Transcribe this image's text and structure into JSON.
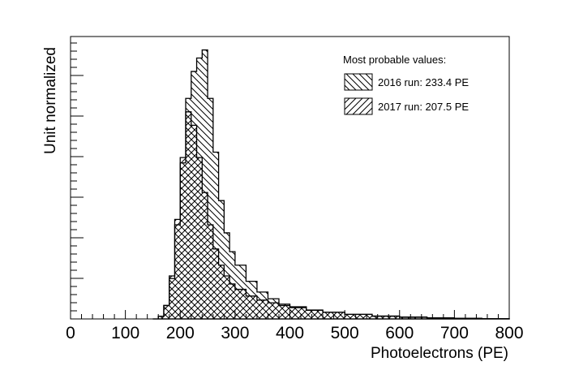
{
  "chart_data": {
    "type": "area",
    "xlabel": "Photoelectrons (PE)",
    "ylabel": "Unit normalized",
    "xlim": [
      0,
      800
    ],
    "ylim": [
      0,
      1.05
    ],
    "x_ticks": [
      0,
      100,
      200,
      300,
      400,
      500,
      600,
      700,
      800
    ],
    "grid": false,
    "legend": {
      "placement": "top-right",
      "title": "Most probable values:",
      "entries": [
        "2016 run: 233.4 PE",
        "2017 run: 207.5 PE"
      ]
    },
    "series": [
      {
        "name": "2016 run: 233.4 PE",
        "hatch": "diagonal-down",
        "x": [
          150,
          160,
          170,
          180,
          190,
          200,
          210,
          220,
          230,
          240,
          250,
          260,
          270,
          280,
          290,
          300,
          320,
          340,
          360,
          380,
          400,
          430,
          460,
          500,
          550,
          600,
          650,
          700,
          750,
          800
        ],
        "values": [
          0.0,
          0.01,
          0.05,
          0.15,
          0.35,
          0.58,
          0.82,
          0.92,
          0.97,
          1.0,
          0.82,
          0.62,
          0.44,
          0.32,
          0.25,
          0.2,
          0.14,
          0.1,
          0.075,
          0.055,
          0.045,
          0.033,
          0.025,
          0.017,
          0.01,
          0.006,
          0.004,
          0.002,
          0.001,
          0.0
        ]
      },
      {
        "name": "2017 run: 207.5 PE",
        "hatch": "diagonal-up",
        "x": [
          150,
          160,
          170,
          180,
          190,
          200,
          210,
          220,
          230,
          240,
          250,
          260,
          270,
          280,
          290,
          300,
          320,
          340,
          360,
          380,
          400,
          430,
          460,
          500,
          550,
          600,
          650,
          700,
          750,
          800
        ],
        "values": [
          0.0,
          0.01,
          0.05,
          0.16,
          0.37,
          0.6,
          0.77,
          0.72,
          0.6,
          0.47,
          0.35,
          0.26,
          0.2,
          0.16,
          0.13,
          0.11,
          0.085,
          0.07,
          0.06,
          0.05,
          0.042,
          0.032,
          0.025,
          0.017,
          0.011,
          0.007,
          0.004,
          0.002,
          0.001,
          0.0
        ]
      }
    ]
  }
}
